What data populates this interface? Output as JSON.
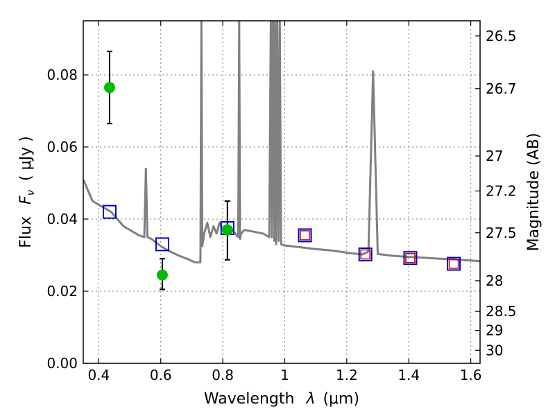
{
  "chart_data": {
    "type": "scatter",
    "xlabel": "Wavelength",
    "xlabel_symbol": "λ",
    "xlabel_unit": "(μm)",
    "ylabel": "Flux",
    "ylabel_symbol": "F",
    "ylabel_subscript": "ν",
    "ylabel_unit": "( μJy )",
    "y2label": "Magnitude (AB)",
    "xlim": [
      0.35,
      1.63
    ],
    "ylim": [
      0.0,
      0.095
    ],
    "grid": true,
    "x_ticks": [
      0.4,
      0.6,
      0.8,
      1.0,
      1.2,
      1.4,
      1.6
    ],
    "x_tick_labels": [
      "0.4",
      "0.6",
      "0.8",
      "1",
      "1.2",
      "1.4",
      "1.6"
    ],
    "y_ticks": [
      0.0,
      0.02,
      0.04,
      0.06,
      0.08
    ],
    "y_tick_labels": [
      "0.00",
      "0.02",
      "0.04",
      "0.06",
      "0.08"
    ],
    "y2_ticks": [
      {
        "label": "26.5",
        "flux": 0.0908
      },
      {
        "label": "26.7",
        "flux": 0.0762
      },
      {
        "label": "27",
        "flux": 0.0575
      },
      {
        "label": "27.2",
        "flux": 0.0478
      },
      {
        "label": "27.5",
        "flux": 0.0362
      },
      {
        "label": "28",
        "flux": 0.0229
      },
      {
        "label": "28.5",
        "flux": 0.0144
      },
      {
        "label": "29",
        "flux": 0.0091
      },
      {
        "label": "30",
        "flux": 0.0036
      }
    ],
    "series": [
      {
        "kind": "line",
        "color": "#808080",
        "x": [
          0.35,
          0.37,
          0.38,
          0.4,
          0.42,
          0.44,
          0.46,
          0.48,
          0.5,
          0.53,
          0.547,
          0.552,
          0.557,
          0.57,
          0.6,
          0.63,
          0.66,
          0.69,
          0.71,
          0.728,
          0.731,
          0.734,
          0.737,
          0.74,
          0.75,
          0.76,
          0.77,
          0.78,
          0.79,
          0.8,
          0.82,
          0.84,
          0.85,
          0.853,
          0.856,
          0.859,
          0.87,
          0.9,
          0.93,
          0.95,
          0.955,
          0.958,
          0.962,
          0.966,
          0.969,
          0.972,
          0.976,
          0.98,
          0.984,
          0.988,
          1.0,
          1.05,
          1.1,
          1.15,
          1.2,
          1.25,
          1.27,
          1.285,
          1.3,
          1.35,
          1.4,
          1.45,
          1.5,
          1.55,
          1.6,
          1.63
        ],
        "y": [
          0.051,
          0.047,
          0.045,
          0.044,
          0.043,
          0.042,
          0.04,
          0.038,
          0.037,
          0.0355,
          0.035,
          0.054,
          0.035,
          0.0345,
          0.0325,
          0.031,
          0.0298,
          0.0288,
          0.028,
          0.028,
          0.095,
          0.0325,
          0.034,
          0.036,
          0.039,
          0.035,
          0.038,
          0.036,
          0.039,
          0.037,
          0.038,
          0.036,
          0.035,
          0.095,
          0.0345,
          0.036,
          0.037,
          0.0365,
          0.036,
          0.035,
          0.095,
          0.035,
          0.095,
          0.034,
          0.095,
          0.033,
          0.095,
          0.034,
          0.095,
          0.033,
          0.0327,
          0.0322,
          0.0317,
          0.0313,
          0.0307,
          0.0302,
          0.031,
          0.081,
          0.0303,
          0.0298,
          0.0295,
          0.0293,
          0.029,
          0.0288,
          0.0285,
          0.0283
        ]
      },
      {
        "kind": "blue_squares",
        "color": "#0000cc",
        "x": [
          0.435,
          0.605,
          0.815,
          1.065,
          1.26,
          1.405,
          1.545
        ],
        "y": [
          0.042,
          0.033,
          0.0375,
          0.0355,
          0.0302,
          0.0292,
          0.0276
        ]
      },
      {
        "kind": "red_squares",
        "color": "#cc0000",
        "x": [
          1.065,
          1.26,
          1.405,
          1.545
        ],
        "y": [
          0.0355,
          0.0302,
          0.0292,
          0.0276
        ]
      },
      {
        "kind": "green_points_with_errors",
        "color": "#00bb00",
        "x": [
          0.435,
          0.605,
          0.815
        ],
        "y": [
          0.0765,
          0.0245,
          0.037
        ],
        "yerr_low": [
          0.0665,
          0.0205,
          0.0287
        ],
        "yerr_high": [
          0.0865,
          0.029,
          0.045
        ]
      }
    ]
  }
}
